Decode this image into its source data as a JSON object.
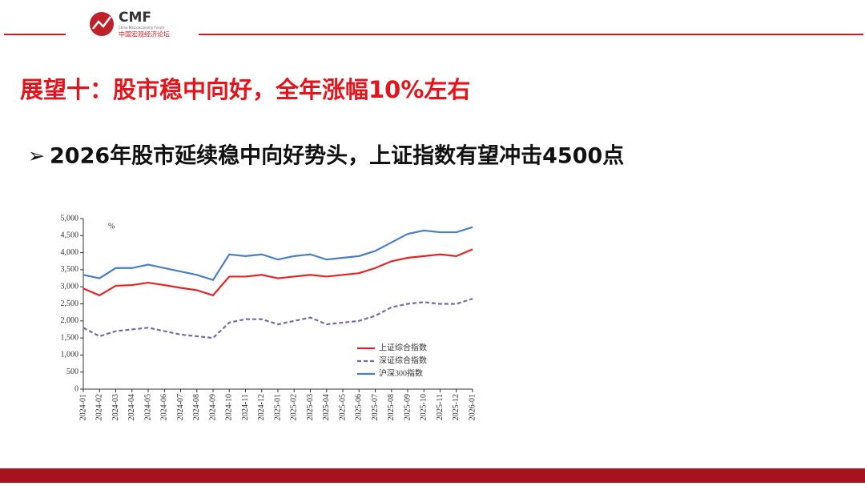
{
  "logo": {
    "name": "CMF",
    "english": "China Macroeconomy Forum",
    "chinese": "中国宏观经济论坛"
  },
  "title": "展望十：股市稳中向好，全年涨幅10%左右",
  "bullet": "2026年股市延续稳中向好势头，上证指数有望冲击4500点",
  "chart_data": {
    "type": "line",
    "unit_label": "%",
    "categories": [
      "2024-01",
      "2024-02",
      "2024-03",
      "2024-04",
      "2024-05",
      "2024-06",
      "2024-07",
      "2024-08",
      "2024-09",
      "2024-10",
      "2024-11",
      "2024-12",
      "2025-01",
      "2025-02",
      "2025-03",
      "2025-04",
      "2025-05",
      "2025-06",
      "2025-07",
      "2025-08",
      "2025-09",
      "2025-10",
      "2025-11",
      "2025-12",
      "2026-01"
    ],
    "series": [
      {
        "name": "上证综合指数",
        "color": "#e32424",
        "dash": false,
        "values": [
          2950,
          2750,
          3030,
          3050,
          3120,
          3050,
          2970,
          2900,
          2750,
          3300,
          3300,
          3350,
          3250,
          3300,
          3350,
          3300,
          3350,
          3400,
          3550,
          3750,
          3850,
          3900,
          3950,
          3900,
          4100
        ]
      },
      {
        "name": "深证综合指数",
        "color": "#7a68a6",
        "dash": true,
        "values": [
          1800,
          1550,
          1700,
          1750,
          1800,
          1700,
          1600,
          1550,
          1500,
          1950,
          2050,
          2050,
          1900,
          2000,
          2100,
          1900,
          1950,
          2000,
          2150,
          2400,
          2500,
          2550,
          2500,
          2500,
          2650
        ]
      },
      {
        "name": "沪深300指数",
        "color": "#4a7fc1",
        "dash": false,
        "values": [
          3350,
          3250,
          3550,
          3550,
          3650,
          3550,
          3450,
          3350,
          3200,
          3950,
          3900,
          3950,
          3800,
          3900,
          3950,
          3800,
          3850,
          3900,
          4050,
          4300,
          4550,
          4650,
          4600,
          4600,
          4750
        ]
      }
    ],
    "ylim": [
      0,
      5000
    ],
    "yticks": [
      0,
      500,
      {
        "value": 1000,
        "label": "1,000"
      },
      {
        "value": 1500,
        "label": "1,500"
      },
      {
        "value": 2000,
        "label": "2,000"
      },
      {
        "value": 2500,
        "label": "2,500"
      },
      {
        "value": 3000,
        "label": "3,000"
      },
      {
        "value": 3500,
        "label": "3,500"
      },
      {
        "value": 4000,
        "label": "4,000"
      },
      {
        "value": 4500,
        "label": "4,500"
      },
      {
        "value": 5000,
        "label": "5,000"
      }
    ],
    "grid": false
  }
}
